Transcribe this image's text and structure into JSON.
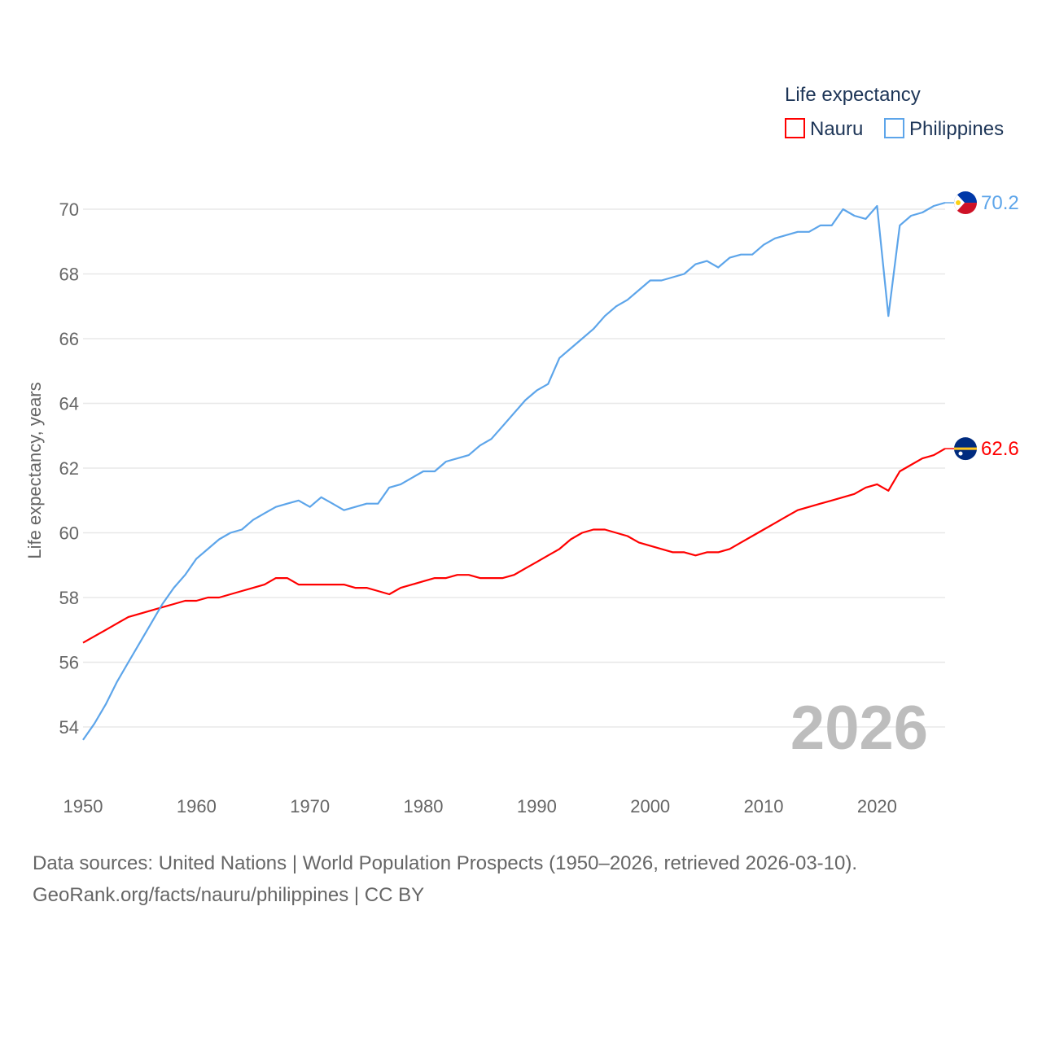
{
  "legend": {
    "title": "Life expectancy"
  },
  "current_year": "2026",
  "footer": {
    "line1": "Data sources: United Nations | World Population Prospects (1950–2026, retrieved 2026-03-10).",
    "line2": "GeoRank.org/facts/nauru/philippines | CC BY"
  },
  "chart_data": {
    "type": "line",
    "title": "Life expectancy",
    "xlabel": "",
    "ylabel": "Life expectancy, years",
    "xlim": [
      1950,
      2026
    ],
    "ylim": [
      53,
      71
    ],
    "grid": true,
    "legend_position": "top-right",
    "x_ticks": [
      1950,
      1960,
      1970,
      1980,
      1990,
      2000,
      2010,
      2020
    ],
    "y_ticks": [
      54,
      56,
      58,
      60,
      62,
      64,
      66,
      68,
      70
    ],
    "x": [
      1950,
      1951,
      1952,
      1953,
      1954,
      1955,
      1956,
      1957,
      1958,
      1959,
      1960,
      1961,
      1962,
      1963,
      1964,
      1965,
      1966,
      1967,
      1968,
      1969,
      1970,
      1971,
      1972,
      1973,
      1974,
      1975,
      1976,
      1977,
      1978,
      1979,
      1980,
      1981,
      1982,
      1983,
      1984,
      1985,
      1986,
      1987,
      1988,
      1989,
      1990,
      1991,
      1992,
      1993,
      1994,
      1995,
      1996,
      1997,
      1998,
      1999,
      2000,
      2001,
      2002,
      2003,
      2004,
      2005,
      2006,
      2007,
      2008,
      2009,
      2010,
      2011,
      2012,
      2013,
      2014,
      2015,
      2016,
      2017,
      2018,
      2019,
      2020,
      2021,
      2022,
      2023,
      2024,
      2025,
      2026
    ],
    "series": [
      {
        "name": "Nauru",
        "color": "#ff0000",
        "end_label": "62.6",
        "values": [
          56.6,
          56.8,
          57.0,
          57.2,
          57.4,
          57.5,
          57.6,
          57.7,
          57.8,
          57.9,
          57.9,
          58.0,
          58.0,
          58.1,
          58.2,
          58.3,
          58.4,
          58.6,
          58.6,
          58.4,
          58.4,
          58.4,
          58.4,
          58.4,
          58.3,
          58.3,
          58.2,
          58.1,
          58.3,
          58.4,
          58.5,
          58.6,
          58.6,
          58.7,
          58.7,
          58.6,
          58.6,
          58.6,
          58.7,
          58.9,
          59.1,
          59.3,
          59.5,
          59.8,
          60.0,
          60.1,
          60.1,
          60.0,
          59.9,
          59.7,
          59.6,
          59.5,
          59.4,
          59.4,
          59.3,
          59.4,
          59.4,
          59.5,
          59.7,
          59.9,
          60.1,
          60.3,
          60.5,
          60.7,
          60.8,
          60.9,
          61.0,
          61.1,
          61.2,
          61.4,
          61.5,
          61.3,
          61.9,
          62.1,
          62.3,
          62.4,
          62.6
        ]
      },
      {
        "name": "Philippines",
        "color": "#5da5ea",
        "end_label": "70.2",
        "values": [
          53.6,
          54.1,
          54.7,
          55.4,
          56.0,
          56.6,
          57.2,
          57.8,
          58.3,
          58.7,
          59.2,
          59.5,
          59.8,
          60.0,
          60.1,
          60.4,
          60.6,
          60.8,
          60.9,
          61.0,
          60.8,
          61.1,
          60.9,
          60.7,
          60.8,
          60.9,
          60.9,
          61.4,
          61.5,
          61.7,
          61.9,
          61.9,
          62.2,
          62.3,
          62.4,
          62.7,
          62.9,
          63.3,
          63.7,
          64.1,
          64.4,
          64.6,
          65.4,
          65.7,
          66.0,
          66.3,
          66.7,
          67.0,
          67.2,
          67.5,
          67.8,
          67.8,
          67.9,
          68.0,
          68.3,
          68.4,
          68.2,
          68.5,
          68.6,
          68.6,
          68.9,
          69.1,
          69.2,
          69.3,
          69.3,
          69.5,
          69.5,
          70.0,
          69.8,
          69.7,
          70.1,
          66.7,
          69.5,
          69.8,
          69.9,
          70.1,
          70.2
        ]
      }
    ]
  }
}
